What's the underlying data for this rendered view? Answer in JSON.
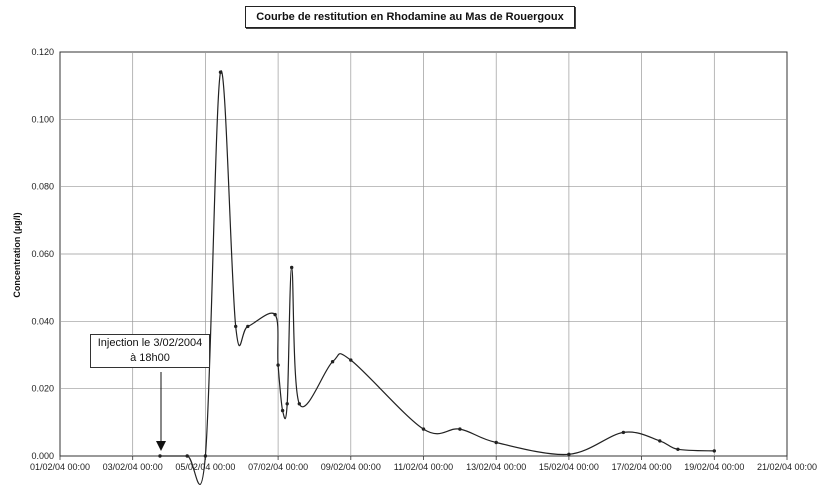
{
  "chart_data": {
    "type": "line",
    "title": "Courbe de restitution en Rhodamine au Mas de Rouergoux",
    "ylabel": "Concentration (µg/l)",
    "xlabel": "",
    "ylim": [
      0,
      0.12
    ],
    "yticks": [
      "0.000",
      "0.020",
      "0.040",
      "0.060",
      "0.080",
      "0.100",
      "0.120"
    ],
    "xticks": [
      "01/02/04 00:00",
      "03/02/04 00:00",
      "05/02/04 00:00",
      "07/02/04 00:00",
      "09/02/04 00:00",
      "11/02/04 00:00",
      "13/02/04 00:00",
      "15/02/04 00:00",
      "17/02/04 00:00",
      "19/02/04 00:00",
      "21/02/04 00:00"
    ],
    "x_range": [
      "01/02/04 00:00",
      "21/02/04 00:00"
    ],
    "grid": true,
    "series": [
      {
        "x": [
          "03/02/04 18:00",
          "04/02/04 12:00",
          "05/02/04 00:00",
          "05/02/04 10:00",
          "05/02/04 20:00",
          "06/02/04 04:00",
          "06/02/04 22:00",
          "07/02/04 00:00",
          "07/02/04 03:00",
          "07/02/04 06:00",
          "07/02/04 09:00",
          "07/02/04 14:00",
          "08/02/04 12:00",
          "09/02/04 00:00",
          "11/02/04 00:00",
          "12/02/04 00:00",
          "13/02/04 00:00",
          "15/02/04 00:00",
          "16/02/04 12:00",
          "17/02/04 12:00",
          "18/02/04 00:00",
          "19/02/04 00:00"
        ],
        "values": [
          0.0,
          0.0,
          0.0,
          0.114,
          0.0385,
          0.0385,
          0.042,
          0.027,
          0.0135,
          0.0155,
          0.056,
          0.0155,
          0.028,
          0.0285,
          0.008,
          0.008,
          0.004,
          0.0005,
          0.007,
          0.0045,
          0.002,
          0.0015
        ]
      }
    ],
    "annotations": [
      {
        "lines": [
          "Injection le 3/02/2004",
          "à 18h00"
        ],
        "x": "03/02/04 18:00"
      }
    ]
  }
}
